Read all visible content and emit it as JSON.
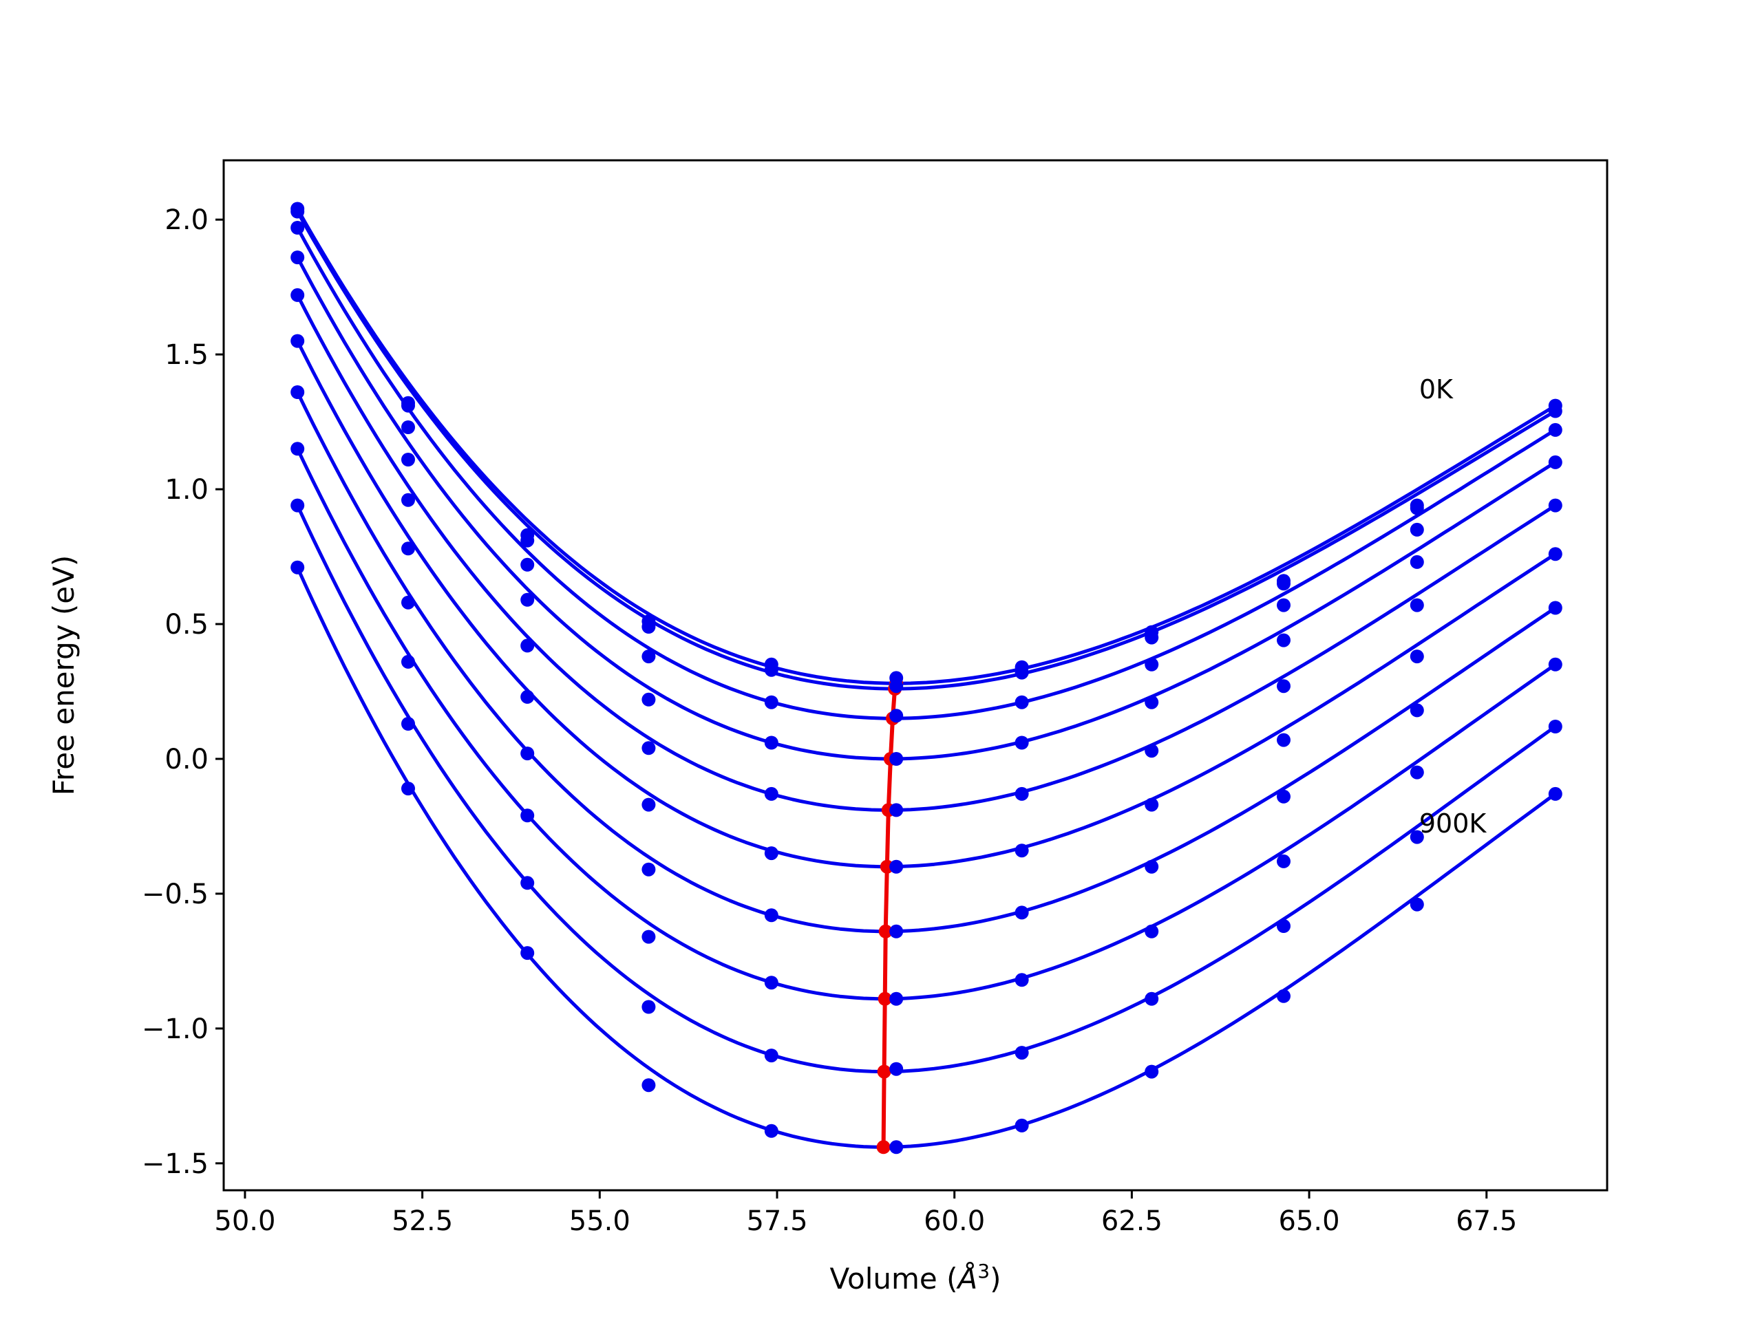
{
  "chart_data": {
    "type": "line",
    "title": "",
    "xlabel": "Volume (",
    "xlabel_unit": "Å",
    "xlabel_exp": "3",
    "xlabel_close": ")",
    "ylabel": "Free energy (eV)",
    "xlim": [
      49.7,
      69.2
    ],
    "ylim": [
      -1.6,
      2.22
    ],
    "x_ticks": [
      50.0,
      52.5,
      55.0,
      57.5,
      60.0,
      62.5,
      65.0,
      67.5
    ],
    "x_tick_labels": [
      "50.0",
      "52.5",
      "55.0",
      "57.5",
      "60.0",
      "62.5",
      "65.0",
      "67.5"
    ],
    "y_ticks": [
      2.0,
      1.5,
      1.0,
      0.5,
      0.0,
      -0.5,
      -1.0,
      -1.5
    ],
    "y_tick_labels": [
      "2.0",
      "1.5",
      "1.0",
      "0.5",
      "0.0",
      "−0.5",
      "−1.0",
      "−1.5"
    ],
    "grid": false,
    "volumes": [
      50.74,
      52.3,
      53.98,
      55.69,
      57.42,
      59.18,
      60.95,
      62.78,
      64.64,
      66.52,
      68.47
    ],
    "series": [
      {
        "values": [
          2.04,
          1.32,
          0.83,
          0.51,
          0.35,
          0.3,
          0.34,
          0.47,
          0.66,
          0.93,
          1.31
        ],
        "vmin": 59.18,
        "emin": 0.28
      },
      {
        "values": [
          2.03,
          1.31,
          0.81,
          0.49,
          0.33,
          0.27,
          0.32,
          0.45,
          0.65,
          0.94,
          1.29
        ],
        "vmin": 59.16,
        "emin": 0.26
      },
      {
        "values": [
          1.97,
          1.23,
          0.72,
          0.38,
          0.21,
          0.16,
          0.21,
          0.35,
          0.57,
          0.85,
          1.22
        ],
        "vmin": 59.13,
        "emin": 0.15
      },
      {
        "values": [
          1.86,
          1.11,
          0.59,
          0.22,
          0.06,
          0.0,
          0.06,
          0.21,
          0.44,
          0.73,
          1.1
        ],
        "vmin": 59.1,
        "emin": 0.0
      },
      {
        "values": [
          1.72,
          0.96,
          0.42,
          0.04,
          -0.13,
          -0.19,
          -0.13,
          0.03,
          0.27,
          0.57,
          0.94
        ],
        "vmin": 59.07,
        "emin": -0.19
      },
      {
        "values": [
          1.55,
          0.78,
          0.23,
          -0.17,
          -0.35,
          -0.4,
          -0.34,
          -0.17,
          0.07,
          0.38,
          0.76
        ],
        "vmin": 59.05,
        "emin": -0.4
      },
      {
        "values": [
          1.36,
          0.58,
          0.02,
          -0.41,
          -0.58,
          -0.64,
          -0.57,
          -0.4,
          -0.14,
          0.18,
          0.56
        ],
        "vmin": 59.03,
        "emin": -0.64
      },
      {
        "values": [
          1.15,
          0.36,
          -0.21,
          -0.66,
          -0.83,
          -0.89,
          -0.82,
          -0.64,
          -0.38,
          -0.05,
          0.35
        ],
        "vmin": 59.02,
        "emin": -0.89
      },
      {
        "values": [
          0.94,
          0.13,
          -0.46,
          -0.92,
          -1.1,
          -1.15,
          -1.09,
          -0.89,
          -0.62,
          -0.29,
          0.12
        ],
        "vmin": 59.01,
        "emin": -1.16
      },
      {
        "values": [
          0.71,
          -0.11,
          -0.72,
          -1.21,
          -1.38,
          -1.44,
          -1.36,
          -1.16,
          -0.88,
          -0.54,
          -0.13
        ],
        "vmin": 59.0,
        "emin": -1.44
      }
    ],
    "series_color": "#0000ee",
    "minimum_color": "#ee0000",
    "annotations": [
      {
        "text": "0K",
        "x": 66.55,
        "y": 1.37
      },
      {
        "text": "900K",
        "x": 66.55,
        "y": -0.24
      }
    ]
  }
}
